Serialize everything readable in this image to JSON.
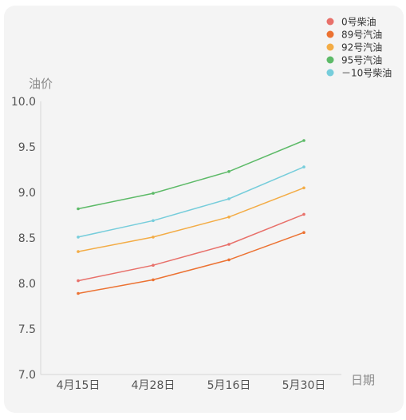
{
  "chart_data": {
    "type": "line",
    "categories": [
      "4月15日",
      "4月28日",
      "5月16日",
      "5月30日"
    ],
    "series": [
      {
        "name": "0号柴油",
        "color": "#e8706a",
        "values": [
          8.03,
          8.2,
          8.43,
          8.76
        ]
      },
      {
        "name": "89号汽油",
        "color": "#ec7232",
        "values": [
          7.89,
          8.04,
          8.26,
          8.56
        ]
      },
      {
        "name": "92号汽油",
        "color": "#f3ac45",
        "values": [
          8.35,
          8.51,
          8.73,
          9.05
        ]
      },
      {
        "name": "95号汽油",
        "color": "#5dba68",
        "values": [
          8.82,
          8.99,
          9.23,
          9.57
        ]
      },
      {
        "name": "－10号柴油",
        "color": "#76cddb",
        "values": [
          8.51,
          8.69,
          8.93,
          9.28
        ]
      }
    ],
    "xlabel": "日期",
    "ylabel": "油价",
    "ylim": [
      7.0,
      10.0
    ],
    "yticks": [
      "7.0",
      "7.5",
      "8.0",
      "8.5",
      "9.0",
      "9.5",
      "10.0"
    ],
    "legend_position": "top-right",
    "grid": false
  }
}
